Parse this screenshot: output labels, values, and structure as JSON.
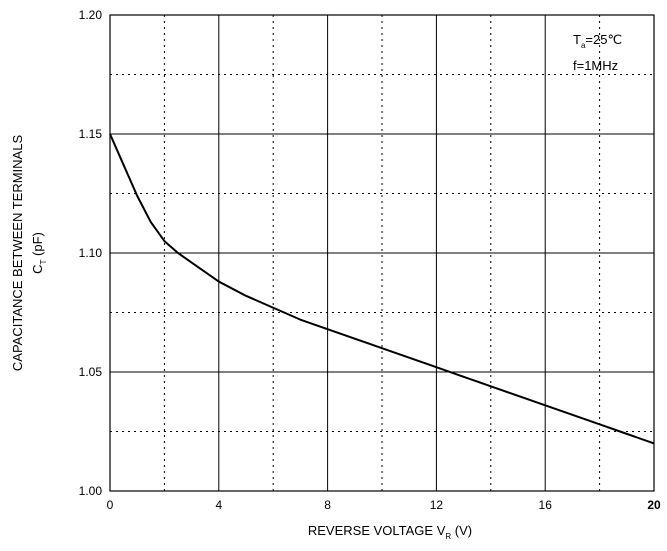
{
  "chart_data": {
    "type": "line",
    "title": "",
    "ylabel": {
      "line1": "CAPACITANCE BETWEEN TERMINALS",
      "symbol": "C",
      "subscript": "T",
      "unit": "(pF)"
    },
    "xlabel": {
      "text": "REVERSE VOLTAGE",
      "symbol": "V",
      "subscript": "R",
      "unit": "(V)"
    },
    "xlim": [
      0,
      20
    ],
    "ylim": [
      1.0,
      1.2
    ],
    "x_ticks": [
      0,
      4,
      8,
      12,
      16,
      20
    ],
    "x_tick_labels": [
      "0",
      "4",
      "8",
      "12",
      "16",
      "20"
    ],
    "y_ticks": [
      1.0,
      1.05,
      1.1,
      1.15,
      1.2
    ],
    "y_tick_labels": [
      "1.00",
      "1.05",
      "1.10",
      "1.15",
      "1.20"
    ],
    "grid": {
      "major": true,
      "minor_dotted": true
    },
    "conditions": [
      {
        "symbol": "T",
        "subscript": "a",
        "rest": "=25℃"
      },
      {
        "symbol": "",
        "subscript": "",
        "rest": "f=1MHz"
      }
    ],
    "series": [
      {
        "x": [
          0,
          0.5,
          1,
          1.5,
          2,
          2.5,
          3,
          4,
          5,
          6,
          7,
          8,
          9,
          10,
          11,
          12,
          13,
          14,
          15,
          16,
          17,
          18,
          19,
          20
        ],
        "values": [
          1.15,
          1.137,
          1.124,
          1.113,
          1.105,
          1.1,
          1.096,
          1.088,
          1.082,
          1.077,
          1.072,
          1.068,
          1.064,
          1.06,
          1.056,
          1.052,
          1.048,
          1.044,
          1.04,
          1.036,
          1.032,
          1.028,
          1.024,
          1.02
        ]
      }
    ],
    "colors": {
      "line": "#000000",
      "grid": "#000000",
      "background": "#ffffff"
    }
  }
}
